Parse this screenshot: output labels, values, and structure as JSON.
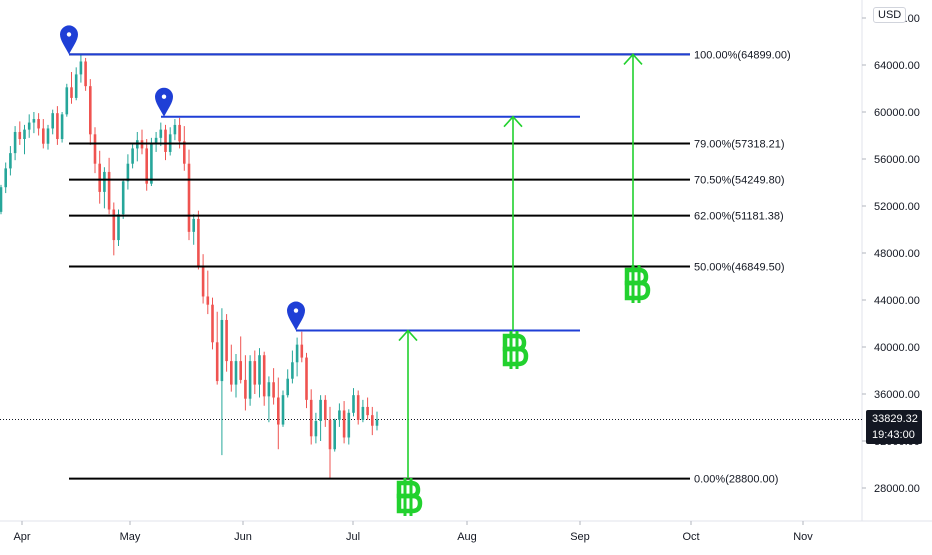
{
  "chart": {
    "currency": "USD",
    "current_price": "33829.32",
    "countdown": "19:43:00"
  },
  "chart_data": {
    "type": "candlestick",
    "y_ticks": [
      "28000.00",
      "32000.00",
      "36000.00",
      "40000.00",
      "44000.00",
      "48000.00",
      "52000.00",
      "56000.00",
      "60000.00",
      "64000.00",
      "68000.00"
    ],
    "ylim": [
      24500,
      69000
    ],
    "x_ticks": [
      "Apr",
      "May",
      "Jun",
      "Jul",
      "Aug",
      "Sep",
      "Oct",
      "Nov"
    ],
    "fib_levels": [
      {
        "label": "100.00%(64899.00)",
        "price": 64899
      },
      {
        "label": "79.00%(57318.21)",
        "price": 57318.21
      },
      {
        "label": "70.50%(54249.80)",
        "price": 54249.8
      },
      {
        "label": "62.00%(51181.38)",
        "price": 51181.38
      },
      {
        "label": "50.00%(46849.50)",
        "price": 46849.5
      },
      {
        "label": "0.00%(28800.00)",
        "price": 28800
      }
    ],
    "horizontal_levels": [
      {
        "price": 64899,
        "color": "#1f3fd6"
      },
      {
        "price": 59600,
        "color": "#1f3fd6"
      },
      {
        "price": 41400,
        "color": "#1f3fd6"
      }
    ],
    "arrows": [
      {
        "from_price": 28800,
        "to_price": 41400
      },
      {
        "from_price": 41400,
        "to_price": 59600
      },
      {
        "from_price": 46849.5,
        "to_price": 64899
      }
    ],
    "candles_ohlc": [
      [
        51500,
        53800,
        51300,
        53600
      ],
      [
        53600,
        55700,
        53100,
        55200
      ],
      [
        55200,
        57100,
        54600,
        56500
      ],
      [
        56500,
        58800,
        55900,
        58300
      ],
      [
        58300,
        59200,
        57200,
        57700
      ],
      [
        57700,
        58900,
        56400,
        58500
      ],
      [
        58500,
        59800,
        57800,
        59100
      ],
      [
        59100,
        60000,
        58200,
        59400
      ],
      [
        59400,
        59900,
        58000,
        58600
      ],
      [
        58600,
        59400,
        56900,
        57300
      ],
      [
        57300,
        58900,
        56800,
        58600
      ],
      [
        58600,
        60200,
        58100,
        59900
      ],
      [
        59900,
        60500,
        57200,
        57700
      ],
      [
        57700,
        60000,
        57400,
        59800
      ],
      [
        59800,
        62400,
        59600,
        62100
      ],
      [
        62100,
        63400,
        60700,
        61200
      ],
      [
        61200,
        63800,
        61000,
        63200
      ],
      [
        63200,
        64899,
        62500,
        64300
      ],
      [
        64300,
        64600,
        61800,
        62200
      ],
      [
        62200,
        62800,
        57200,
        58100
      ],
      [
        58100,
        58700,
        54800,
        55600
      ],
      [
        55600,
        56700,
        52200,
        53200
      ],
      [
        53200,
        55300,
        51800,
        54900
      ],
      [
        54900,
        56100,
        51300,
        51700
      ],
      [
        51700,
        52300,
        47800,
        49100
      ],
      [
        49100,
        51700,
        48600,
        51300
      ],
      [
        51300,
        54300,
        50900,
        54100
      ],
      [
        54100,
        56400,
        53400,
        55600
      ],
      [
        55600,
        57400,
        55200,
        56900
      ],
      [
        56900,
        58300,
        55800,
        57600
      ],
      [
        57600,
        58500,
        56400,
        56900
      ],
      [
        56900,
        57700,
        53300,
        53900
      ],
      [
        53900,
        57800,
        53700,
        57300
      ],
      [
        57300,
        58300,
        56600,
        57800
      ],
      [
        57800,
        59100,
        57100,
        58500
      ],
      [
        58500,
        58900,
        55900,
        56600
      ],
      [
        56600,
        58700,
        56300,
        58100
      ],
      [
        58100,
        59400,
        57600,
        58900
      ],
      [
        58900,
        59500,
        56900,
        57500
      ],
      [
        57500,
        58800,
        55000,
        55600
      ],
      [
        55600,
        56800,
        49100,
        49800
      ],
      [
        49800,
        51300,
        48700,
        50900
      ],
      [
        50900,
        51600,
        46600,
        46900
      ],
      [
        46900,
        47900,
        43700,
        44300
      ],
      [
        44300,
        46500,
        42800,
        43600
      ],
      [
        43600,
        44200,
        39800,
        40400
      ],
      [
        40400,
        43000,
        36800,
        37100
      ],
      [
        37100,
        43300,
        30800,
        42300
      ],
      [
        42300,
        42800,
        37900,
        38800
      ],
      [
        38800,
        40200,
        36200,
        36800
      ],
      [
        36800,
        39400,
        35700,
        38800
      ],
      [
        38800,
        40900,
        36900,
        37200
      ],
      [
        37200,
        39300,
        34600,
        35600
      ],
      [
        35600,
        39300,
        35000,
        38800
      ],
      [
        38800,
        39700,
        36000,
        36800
      ],
      [
        36800,
        39900,
        35700,
        39300
      ],
      [
        39300,
        39600,
        35000,
        35800
      ],
      [
        35800,
        37500,
        33600,
        37000
      ],
      [
        37000,
        38200,
        35100,
        35700
      ],
      [
        35700,
        37400,
        31300,
        33400
      ],
      [
        33400,
        36300,
        33200,
        35900
      ],
      [
        35900,
        38100,
        35700,
        37300
      ],
      [
        37300,
        39700,
        36900,
        38700
      ],
      [
        38700,
        40800,
        37500,
        40200
      ],
      [
        40200,
        41300,
        38700,
        39100
      ],
      [
        39100,
        39500,
        34800,
        35500
      ],
      [
        35500,
        36400,
        31700,
        32400
      ],
      [
        32400,
        34400,
        31800,
        33700
      ],
      [
        33700,
        35900,
        32000,
        35500
      ],
      [
        35500,
        35900,
        33200,
        33800
      ],
      [
        33800,
        34900,
        28800,
        31300
      ],
      [
        31300,
        33900,
        31100,
        33800
      ],
      [
        33800,
        35200,
        33200,
        34600
      ],
      [
        34600,
        35400,
        31800,
        32300
      ],
      [
        32300,
        34700,
        31700,
        34400
      ],
      [
        34400,
        36500,
        34100,
        35900
      ],
      [
        35900,
        36300,
        33400,
        33800
      ],
      [
        33800,
        35500,
        33600,
        34900
      ],
      [
        34900,
        35700,
        33800,
        34200
      ],
      [
        34200,
        34900,
        32500,
        33300
      ],
      [
        33300,
        34500,
        32900,
        33829
      ]
    ],
    "annotations": [
      {
        "type": "pin",
        "color": "#1f3fd6",
        "at_price": 64899
      },
      {
        "type": "pin",
        "color": "#1f3fd6",
        "at_price": 59600
      },
      {
        "type": "pin",
        "color": "#1f3fd6",
        "at_price": 41400
      },
      {
        "type": "bitcoin-icon",
        "color": "#22d12e"
      },
      {
        "type": "bitcoin-icon",
        "color": "#22d12e"
      },
      {
        "type": "bitcoin-icon",
        "color": "#22d12e"
      }
    ]
  }
}
